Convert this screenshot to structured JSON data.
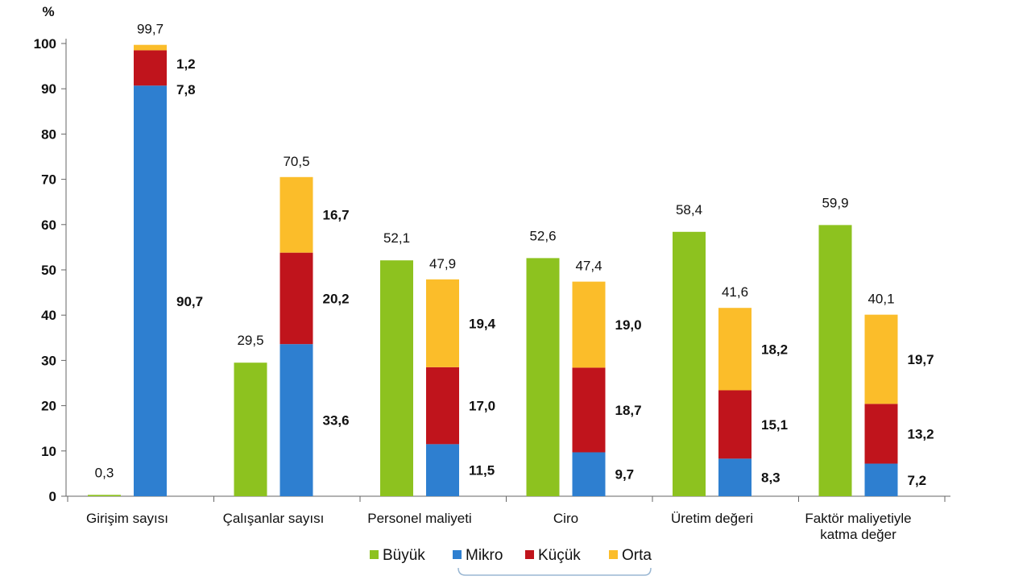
{
  "chart_data": {
    "type": "bar",
    "unit": "%",
    "ylim": [
      0,
      100
    ],
    "yticks": [
      0,
      10,
      20,
      30,
      40,
      50,
      60,
      70,
      80,
      90,
      100
    ],
    "grid": false,
    "legend_position": "bottom",
    "categories": [
      [
        "Girişim sayısı"
      ],
      [
        "Çalışanlar sayısı"
      ],
      [
        "Personel maliyeti"
      ],
      [
        "Ciro"
      ],
      [
        "Üretim değeri"
      ],
      [
        "Faktör maliyetiyle",
        "katma değer"
      ]
    ],
    "series": [
      {
        "name": "Büyük",
        "color": "#8dc21f",
        "values": [
          0.3,
          29.5,
          52.1,
          52.6,
          58.4,
          59.9
        ]
      },
      {
        "name": "Mikro",
        "color": "#2e7fd0",
        "values": [
          90.7,
          33.6,
          11.5,
          9.7,
          8.3,
          7.2
        ]
      },
      {
        "name": "Küçük",
        "color": "#c0141c",
        "values": [
          7.8,
          20.2,
          17.0,
          18.7,
          15.1,
          13.2
        ]
      },
      {
        "name": "Orta",
        "color": "#fbbd2a",
        "values": [
          1.2,
          16.7,
          19.4,
          19.0,
          18.2,
          19.7
        ]
      }
    ],
    "stack_totals": [
      99.7,
      70.5,
      47.9,
      47.4,
      41.6,
      40.1
    ],
    "value_labels": {
      "buyuk": [
        "0,3",
        "29,5",
        "52,1",
        "52,6",
        "58,4",
        "59,9"
      ],
      "mikro": [
        "90,7",
        "33,6",
        "11,5",
        "9,7",
        "8,3",
        "7,2"
      ],
      "kucuk": [
        "7,8",
        "20,2",
        "17,0",
        "18,7",
        "15,1",
        "13,2"
      ],
      "orta": [
        "1,2",
        "16,7",
        "19,4",
        "19,0",
        "18,2",
        "19,7"
      ],
      "totals": [
        "99,7",
        "70,5",
        "47,9",
        "47,4",
        "41,6",
        "40,1"
      ]
    }
  }
}
